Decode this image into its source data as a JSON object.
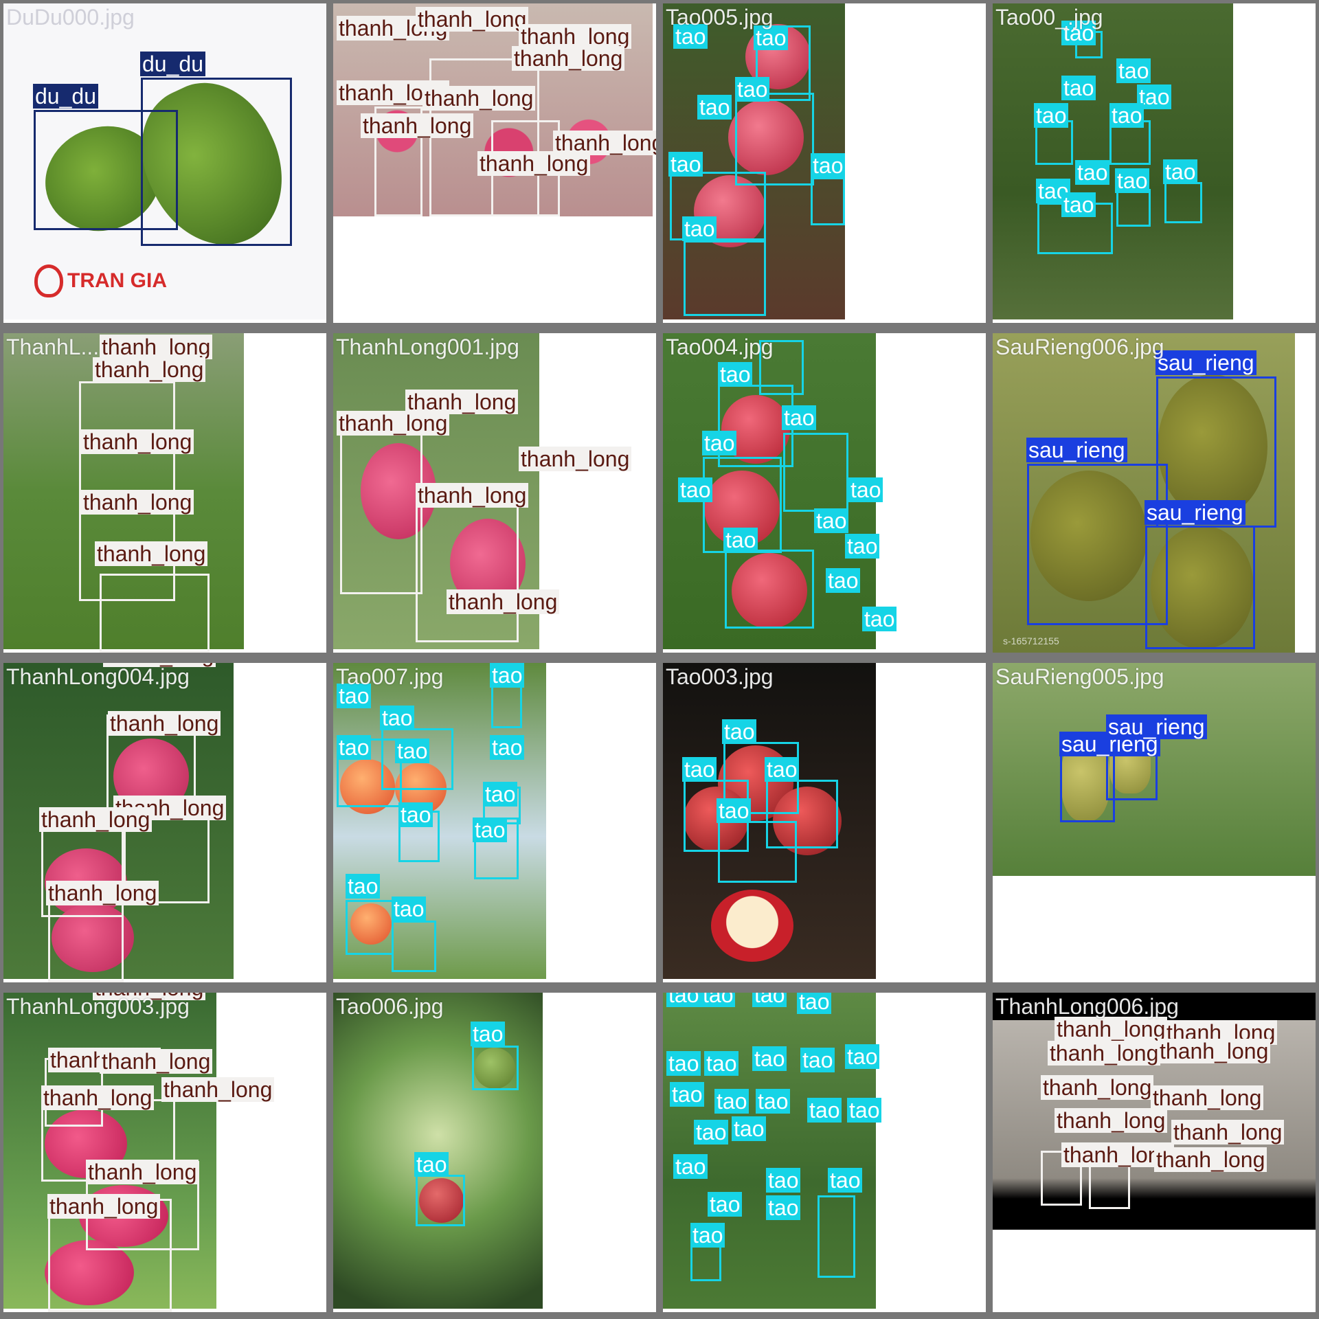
{
  "grid": {
    "colors": {
      "tao": "#16d4e6",
      "thanh_long": "#f3f1ef",
      "du_du": "#162a6e",
      "sau_rieng": "#1a3fe0",
      "separator": "#777777"
    },
    "class_labels": {
      "tao": "tao",
      "thanh_long": "thanh_long",
      "du_du": "du_du",
      "sau_rieng": "sau_rieng"
    },
    "tiles": [
      {
        "filename": "DuDu000.jpg",
        "logo_text": "TRAN GIA"
      },
      {
        "filename": ""
      },
      {
        "filename": "Tao005.jpg"
      },
      {
        "filename": "Tao00_.jpg"
      },
      {
        "filename": "ThanhL..."
      },
      {
        "filename": "ThanhLong001.jpg"
      },
      {
        "filename": "Tao004.jpg"
      },
      {
        "filename": "SauRieng006.jpg",
        "watermark": "s-165712155"
      },
      {
        "filename": "ThanhLong004.jpg"
      },
      {
        "filename": "Tao007.jpg"
      },
      {
        "filename": "Tao003.jpg"
      },
      {
        "filename": "SauRieng005.jpg"
      },
      {
        "filename": "ThanhLong003.jpg"
      },
      {
        "filename": "Tao006.jpg"
      },
      {
        "filename": ""
      },
      {
        "filename": "ThanhLong006.jpg"
      }
    ]
  }
}
